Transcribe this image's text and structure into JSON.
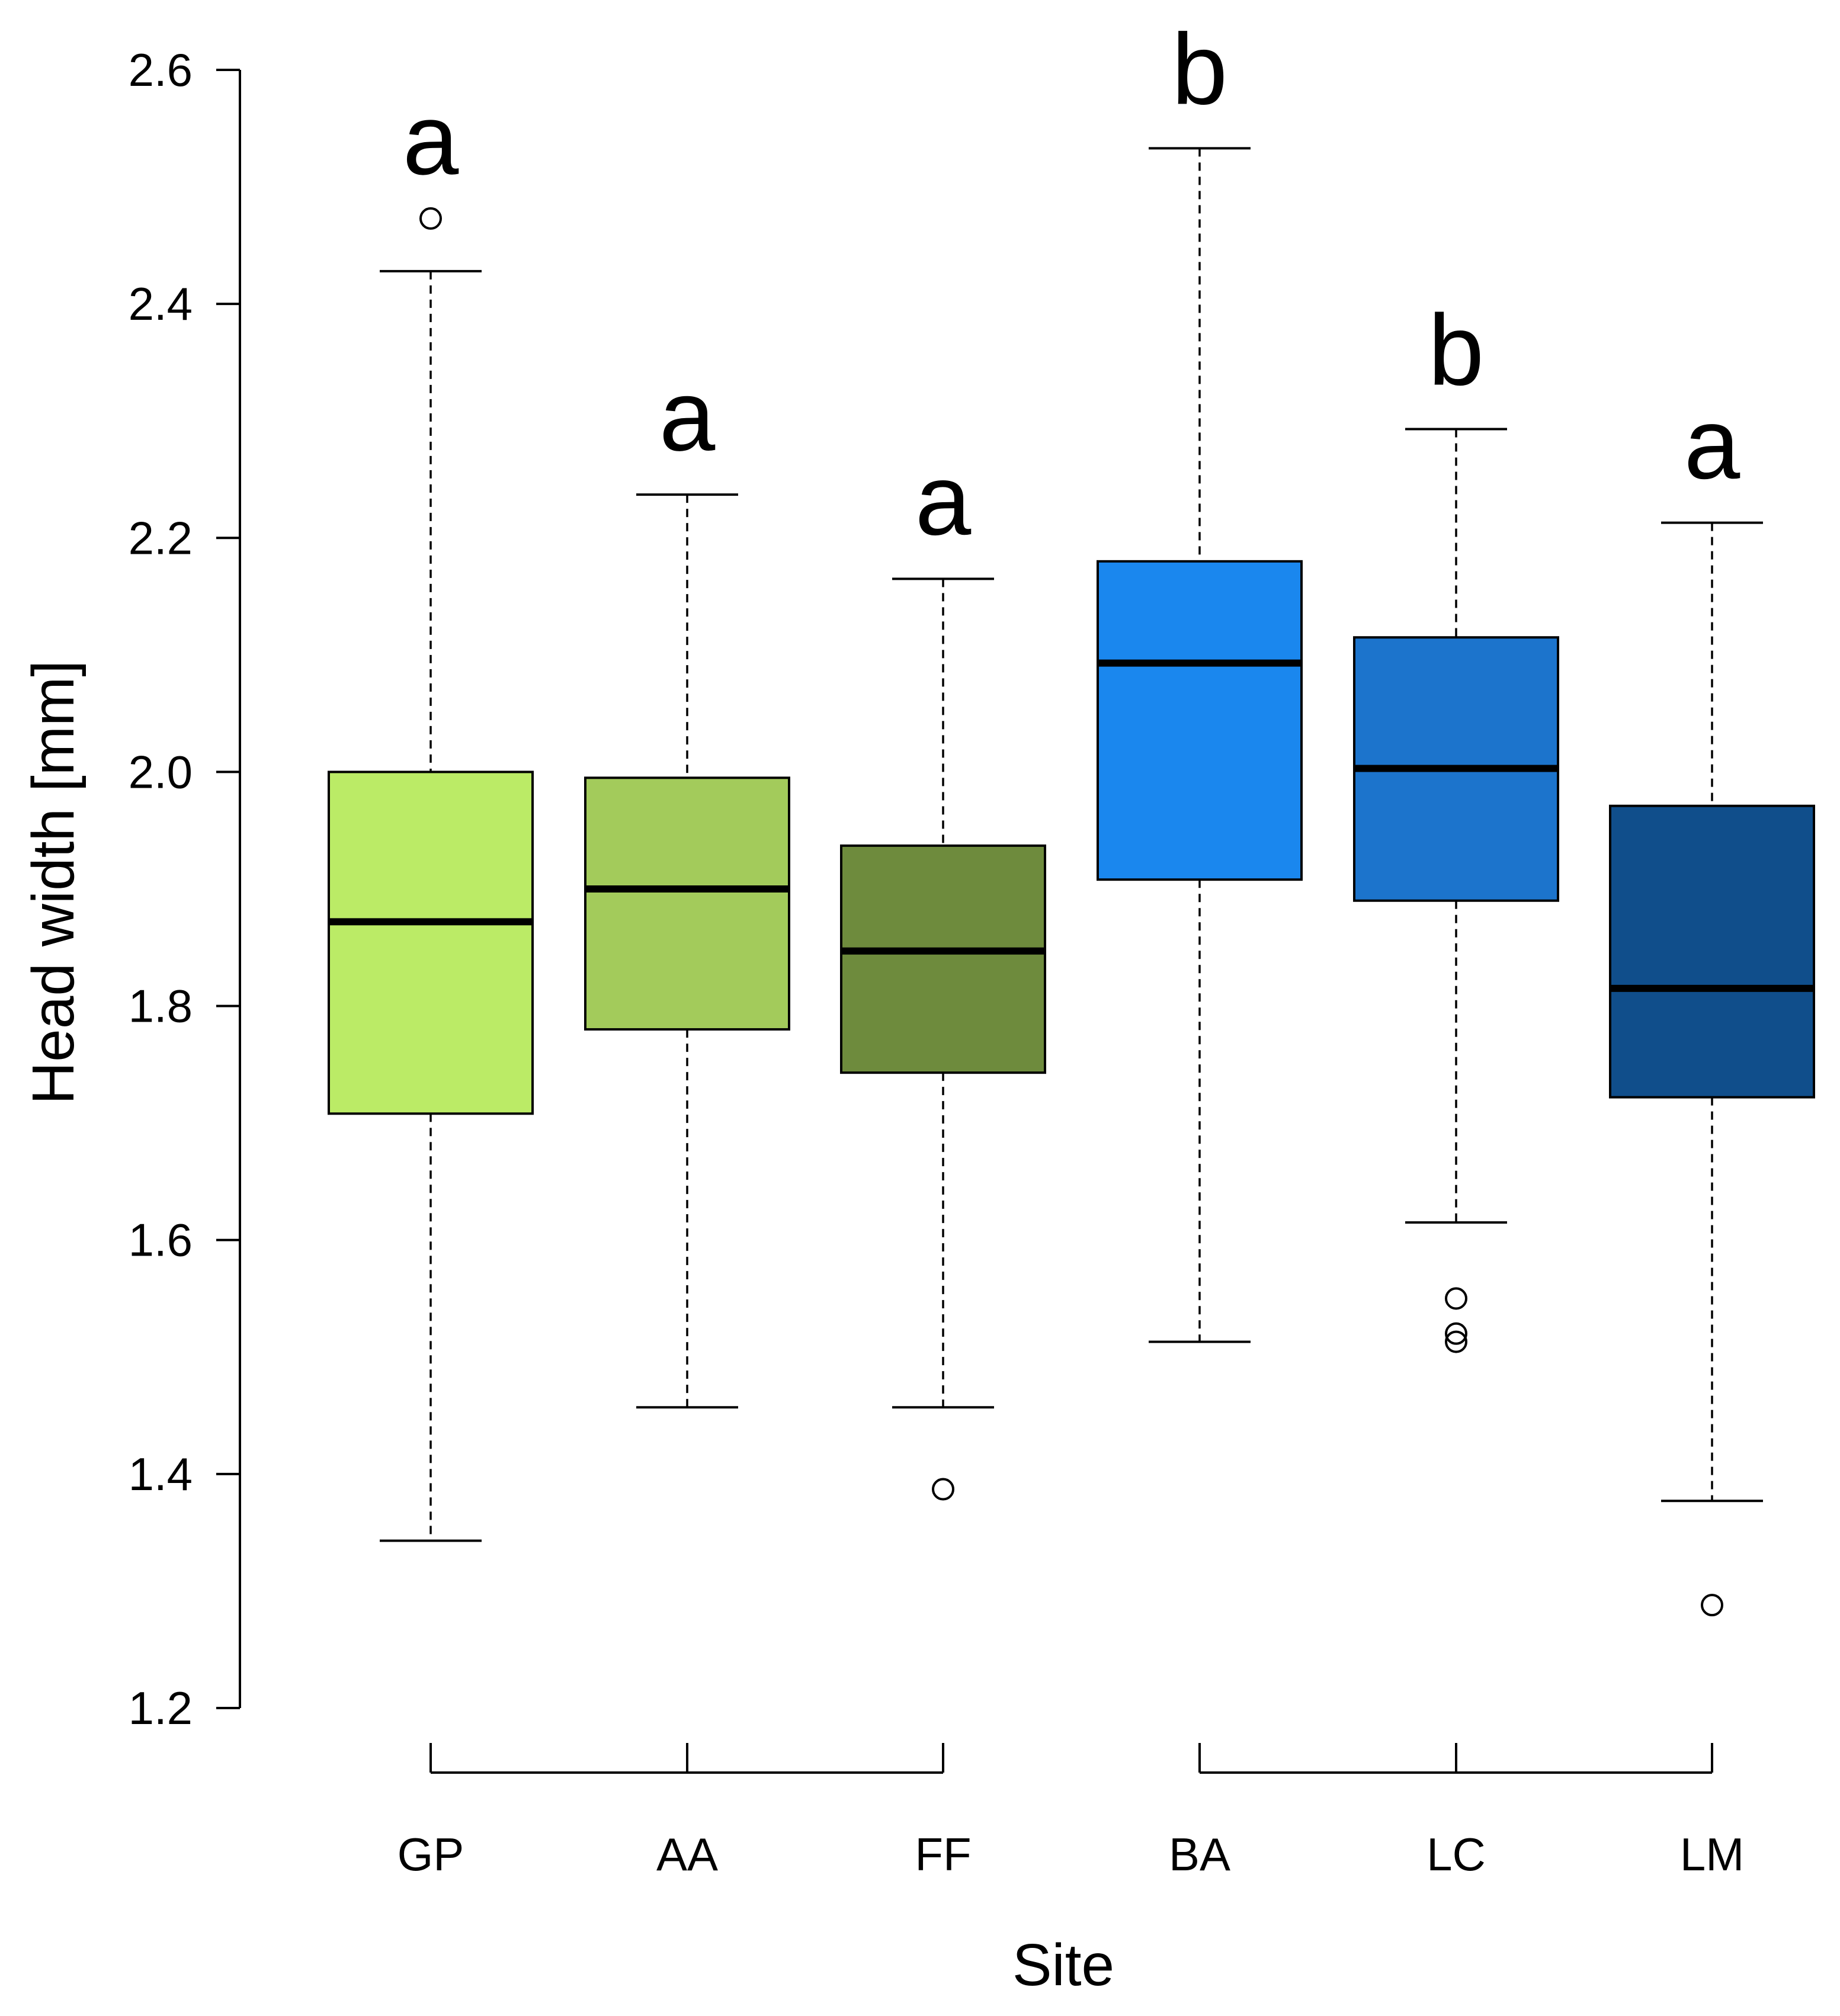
{
  "chart_data": {
    "type": "boxplot",
    "title": "",
    "xlabel": "Site",
    "ylabel": "Head width [mm]",
    "ylim": [
      1.2,
      2.6
    ],
    "yticks": [
      "1.2",
      "1.4",
      "1.6",
      "1.8",
      "2.0",
      "2.2",
      "2.4",
      "2.6"
    ],
    "ytick_values": [
      1.2,
      1.4,
      1.6,
      1.8,
      2.0,
      2.2,
      2.4,
      2.6
    ],
    "grid": false,
    "groups": [
      [
        0,
        1,
        2
      ],
      [
        3,
        4,
        5
      ]
    ],
    "categories": [
      "GP",
      "AA",
      "FF",
      "BA",
      "LC",
      "LM"
    ],
    "boxes": [
      {
        "name": "GP",
        "whisker_low": 1.343,
        "q1": 1.708,
        "median": 1.872,
        "q3": 2.0,
        "whisker_high": 2.428,
        "outliers": [
          2.473
        ],
        "letter": "a",
        "color": "#bbeb66"
      },
      {
        "name": "AA",
        "whisker_low": 1.457,
        "q1": 1.78,
        "median": 1.9,
        "q3": 1.995,
        "whisker_high": 2.237,
        "outliers": [],
        "letter": "a",
        "color": "#a3cb5b"
      },
      {
        "name": "FF",
        "whisker_low": 1.457,
        "q1": 1.743,
        "median": 1.847,
        "q3": 1.937,
        "whisker_high": 2.165,
        "outliers": [
          1.387
        ],
        "letter": "a",
        "color": "#6e8b3d"
      },
      {
        "name": "BA",
        "whisker_low": 1.513,
        "q1": 1.908,
        "median": 2.093,
        "q3": 2.18,
        "whisker_high": 2.533,
        "outliers": [],
        "letter": "b",
        "color": "#1a87ee"
      },
      {
        "name": "LC",
        "whisker_low": 1.615,
        "q1": 1.89,
        "median": 2.003,
        "q3": 2.115,
        "whisker_high": 2.293,
        "outliers": [
          1.55,
          1.52,
          1.513
        ],
        "letter": "b",
        "color": "#1c74cc"
      },
      {
        "name": "LM",
        "whisker_low": 1.377,
        "q1": 1.722,
        "median": 1.815,
        "q3": 1.971,
        "whisker_high": 2.213,
        "outliers": [
          1.288
        ],
        "letter": "a",
        "color": "#104e8b"
      }
    ]
  }
}
